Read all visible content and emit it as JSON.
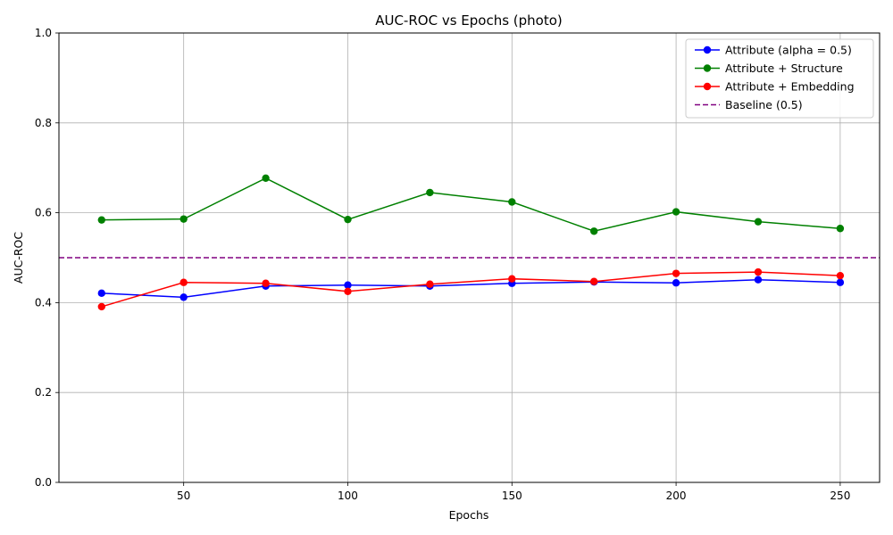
{
  "chart_data": {
    "type": "line",
    "title": "AUC-ROC vs Epochs (photo)",
    "xlabel": "Epochs",
    "ylabel": "AUC-ROC",
    "xlim": [
      12,
      262
    ],
    "ylim": [
      0,
      1
    ],
    "xticks": [
      50,
      100,
      150,
      200,
      250
    ],
    "yticks": [
      0.0,
      0.2,
      0.4,
      0.6,
      0.8,
      1.0
    ],
    "ytick_labels": [
      "0.0",
      "0.2",
      "0.4",
      "0.6",
      "0.8",
      "1.0"
    ],
    "grid": true,
    "legend_position": "top-right",
    "x": [
      25,
      50,
      75,
      100,
      125,
      150,
      175,
      200,
      225,
      250
    ],
    "series": [
      {
        "name": "Attribute (alpha = 0.5)",
        "color": "#0000ff",
        "style": "solid",
        "marker": "circle",
        "values": [
          0.421,
          0.412,
          0.437,
          0.439,
          0.437,
          0.443,
          0.446,
          0.444,
          0.451,
          0.445
        ]
      },
      {
        "name": "Attribute + Structure",
        "color": "#008000",
        "style": "solid",
        "marker": "circle",
        "values": [
          0.584,
          0.586,
          0.677,
          0.585,
          0.645,
          0.624,
          0.559,
          0.602,
          0.58,
          0.565
        ]
      },
      {
        "name": "Attribute + Embedding",
        "color": "#ff0000",
        "style": "solid",
        "marker": "circle",
        "values": [
          0.391,
          0.445,
          0.443,
          0.425,
          0.441,
          0.453,
          0.447,
          0.465,
          0.468,
          0.46
        ]
      }
    ],
    "baseline": {
      "name": "Baseline (0.5)",
      "value": 0.5,
      "color": "#800080",
      "style": "dashed"
    }
  }
}
